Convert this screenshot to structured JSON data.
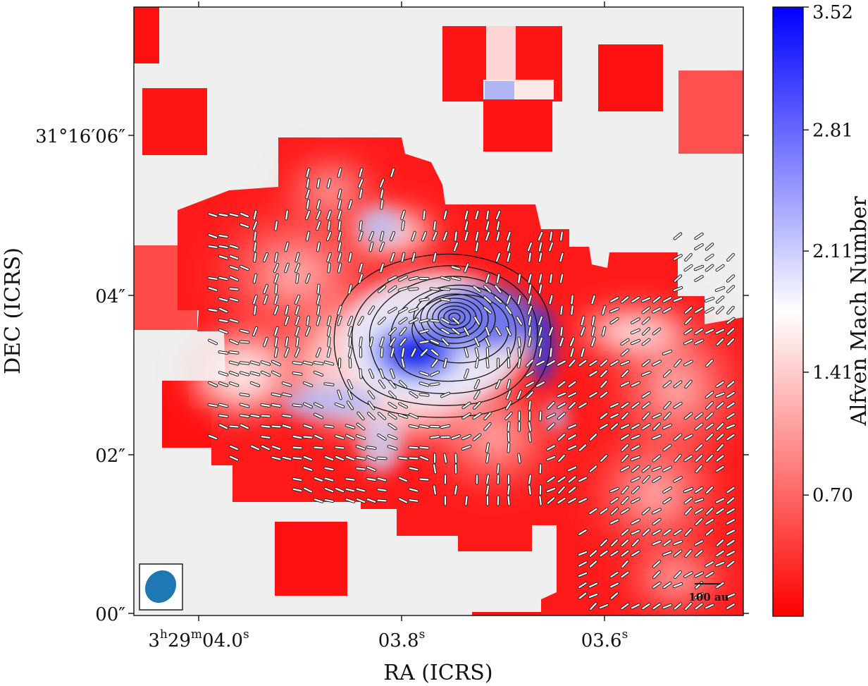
{
  "chart_data": {
    "type": "heatmap",
    "title": "",
    "xlabel": "RA (ICRS)",
    "ylabel": "DEC (ICRS)",
    "x_ticks": [
      {
        "main": "3",
        "sup1": "h",
        "mid": "29",
        "sup2": "m",
        "tail": "04.0",
        "sup3": "s"
      },
      {
        "main": "03.8",
        "sup1": "s"
      },
      {
        "main": "03.6",
        "sup1": "s"
      }
    ],
    "y_ticks": [
      "31°16′06″",
      "04″",
      "02″",
      "00″"
    ],
    "colorbar": {
      "label": "Alfven Mach Number",
      "tick_labels": [
        "3.52",
        "2.81",
        "2.11",
        "1.41",
        "0.70"
      ],
      "tick_values": [
        3.52,
        2.81,
        2.11,
        1.41,
        0.7
      ],
      "range": [
        0.0,
        3.52
      ],
      "colormap": "bwr_r",
      "low_color": "#ff0000",
      "mid_color": "#ffffff",
      "high_color": "#0000ff"
    },
    "scale_bar": "100 au",
    "beam_color": "#1f77b4",
    "background_color": "#efefef",
    "contours": true,
    "field_vectors": true
  }
}
